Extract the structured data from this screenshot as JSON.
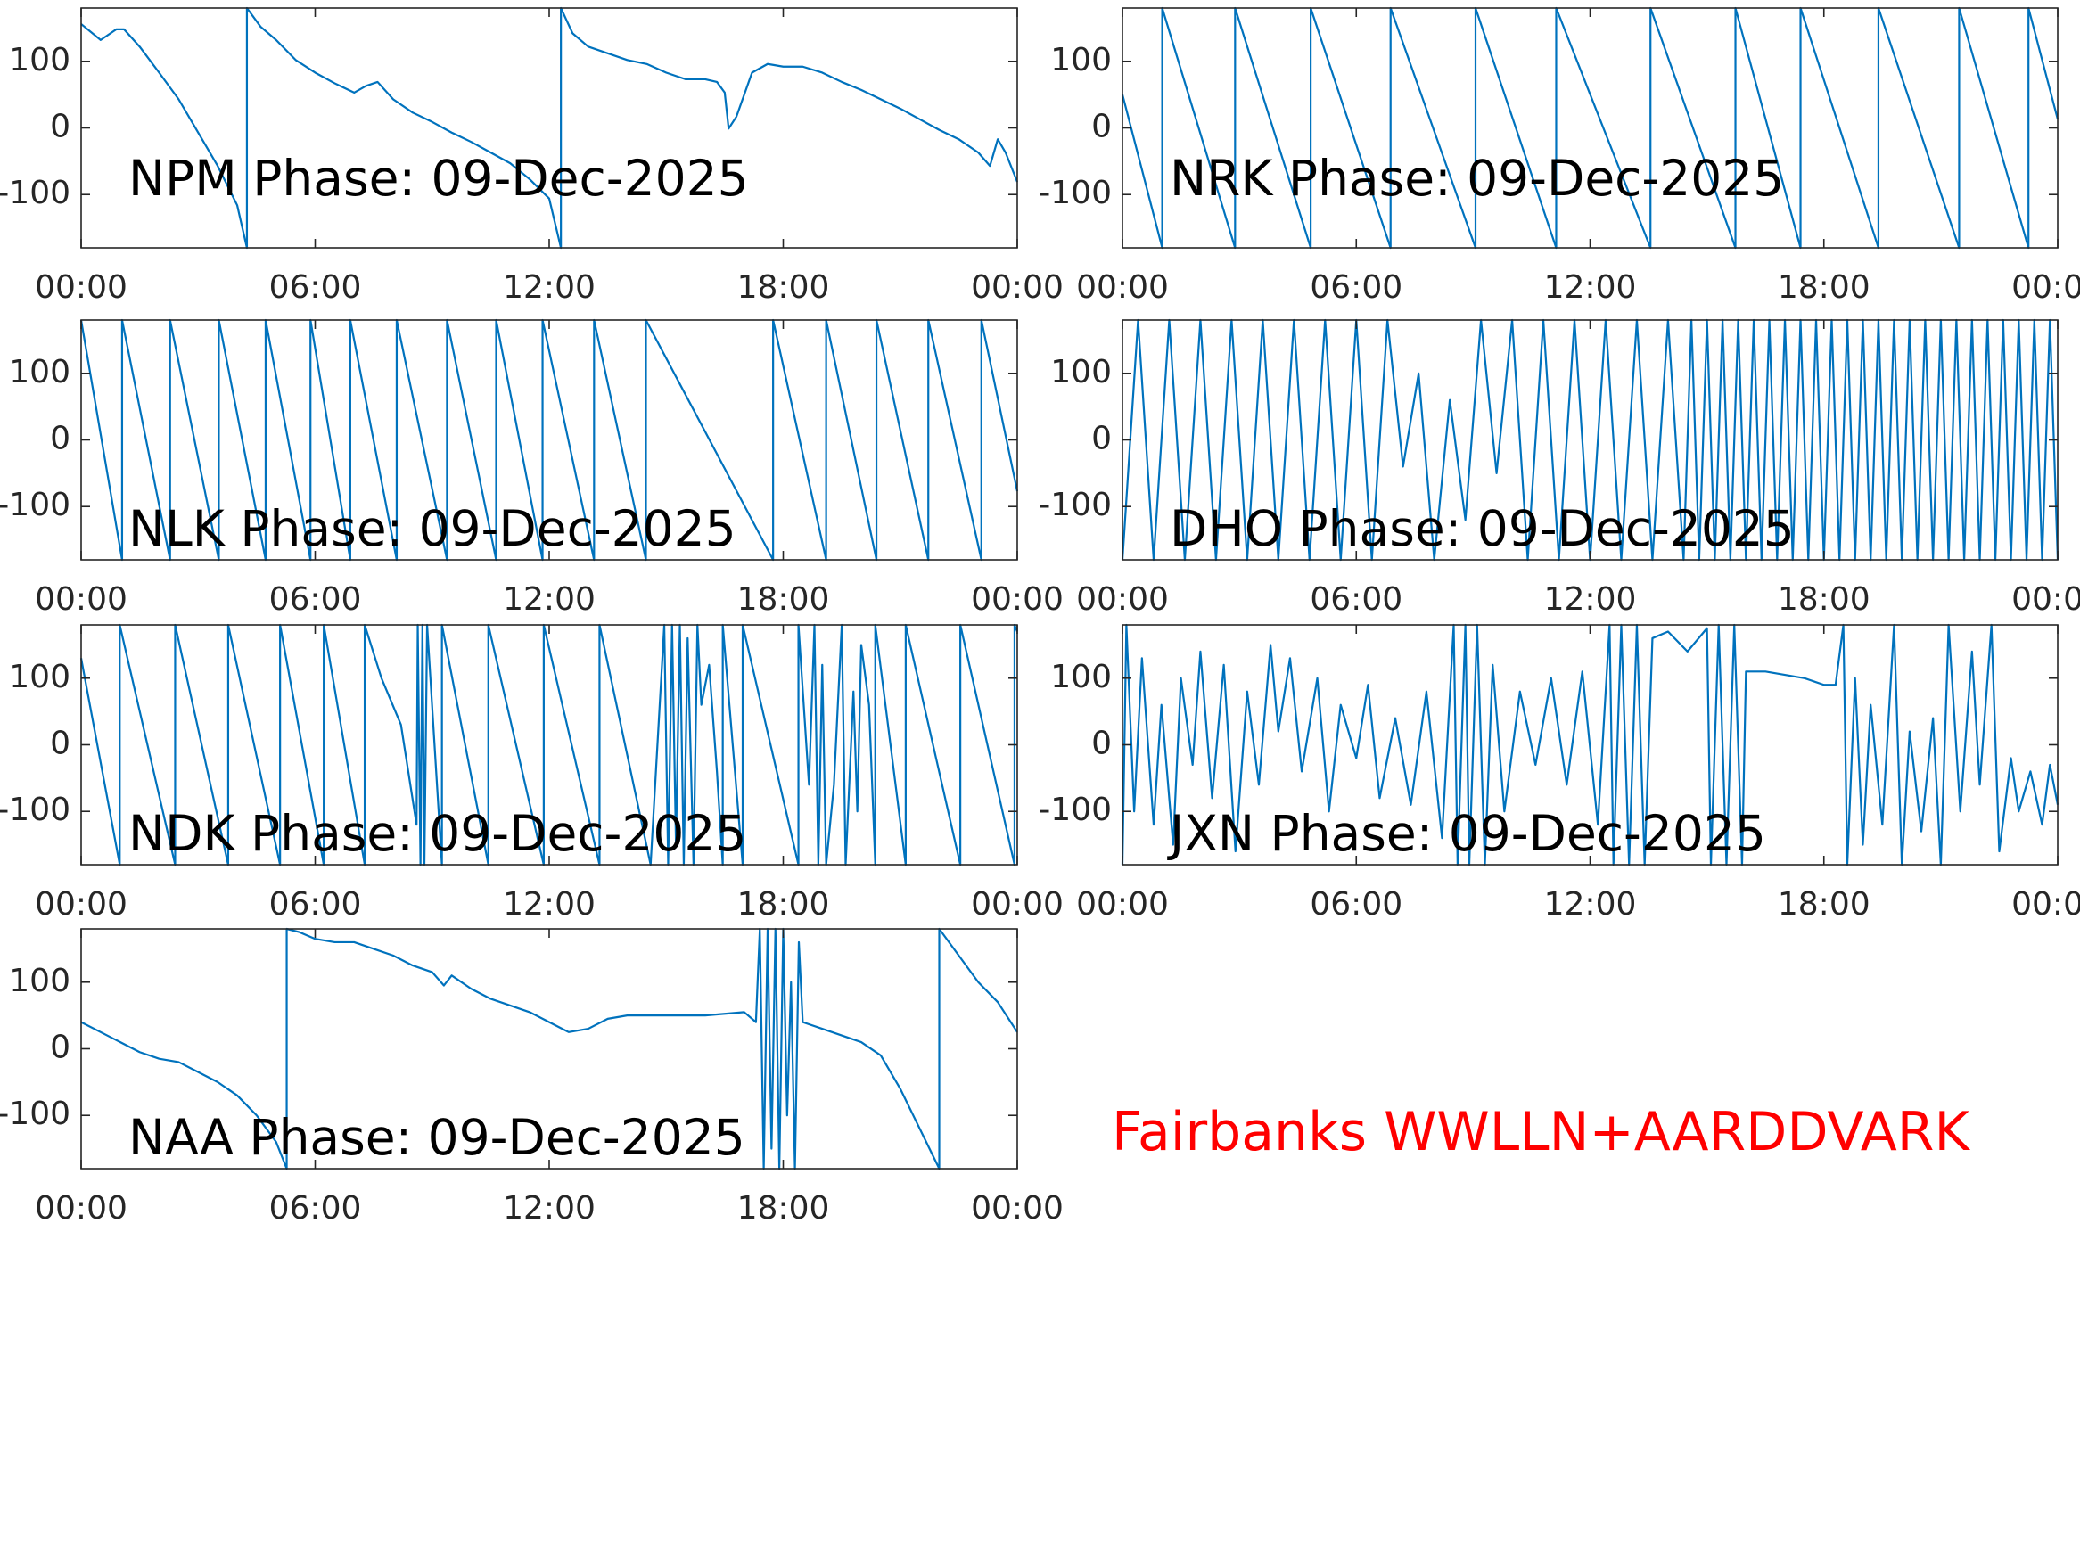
{
  "chart_data": [
    {
      "type": "line",
      "title": "NPM Phase: 09-Dec-2025",
      "color": "#0072bd",
      "x": [
        0,
        0.5,
        0.9,
        1.1,
        1.5,
        2,
        2.5,
        3,
        3.5,
        4,
        4.25,
        4.25,
        4.6,
        5,
        5.5,
        6,
        6.5,
        7,
        7.3,
        7.6,
        8,
        8.5,
        9,
        9.5,
        10,
        10.5,
        11,
        11.5,
        12,
        12.3,
        12.3,
        12.6,
        13,
        13.5,
        14,
        14.5,
        15,
        15.5,
        16,
        16.3,
        16.5,
        16.6,
        16.8,
        17.2,
        17.6,
        18,
        18.5,
        19,
        19.5,
        20,
        20.5,
        21,
        21.5,
        22,
        22.5,
        23,
        23.3,
        23.5,
        23.7,
        24
      ],
      "values": [
        156,
        132,
        148,
        148,
        122,
        83,
        43,
        -7,
        -57,
        -116,
        -180,
        180,
        152,
        132,
        102,
        83,
        67,
        53,
        63,
        69,
        43,
        23,
        9,
        -7,
        -21,
        -37,
        -53,
        -77,
        -106,
        -180,
        180,
        142,
        122,
        112,
        102,
        96,
        83,
        73,
        73,
        69,
        53,
        -1,
        17,
        83,
        96,
        92,
        92,
        83,
        69,
        57,
        43,
        29,
        13,
        -3,
        -17,
        -37,
        -57,
        -17,
        -37,
        -81
      ],
      "xlim": [
        0,
        24
      ],
      "xticks": [
        {
          "value": 0,
          "label": "00:00"
        },
        {
          "value": 6,
          "label": "06:00"
        },
        {
          "value": 12,
          "label": "12:00"
        },
        {
          "value": 18,
          "label": "18:00"
        },
        {
          "value": 24,
          "label": "00:00"
        }
      ],
      "ylim": [
        -180,
        180
      ],
      "yticks": [
        -100,
        0,
        100
      ]
    },
    {
      "type": "line",
      "title": "NRK Phase: 09-Dec-2025",
      "color": "#0072bd",
      "x": [
        0,
        1.02,
        1.02,
        2.89,
        2.89,
        4.83,
        4.83,
        6.88,
        6.88,
        9.06,
        9.06,
        11.13,
        11.13,
        13.55,
        13.55,
        15.73,
        15.73,
        17.4,
        17.4,
        19.4,
        19.4,
        21.47,
        21.47,
        23.25,
        23.25,
        24
      ],
      "values": [
        50,
        -180,
        180,
        -180,
        180,
        -180,
        180,
        -180,
        180,
        -180,
        180,
        -180,
        180,
        -180,
        180,
        -180,
        180,
        -180,
        180,
        -180,
        180,
        -180,
        180,
        -180,
        180,
        13
      ],
      "xlim": [
        0,
        24
      ],
      "xticks": [
        {
          "value": 0,
          "label": "00:00"
        },
        {
          "value": 6,
          "label": "06:00"
        },
        {
          "value": 12,
          "label": "12:00"
        },
        {
          "value": 18,
          "label": "18:00"
        },
        {
          "value": 24,
          "label": "00:00"
        }
      ],
      "ylim": [
        -180,
        180
      ],
      "yticks": [
        -100,
        0,
        100
      ]
    },
    {
      "type": "line",
      "title": "NLK Phase: 09-Dec-2025",
      "color": "#0072bd",
      "x": [
        0,
        1.05,
        1.05,
        2.28,
        2.28,
        3.53,
        3.53,
        4.73,
        4.73,
        5.88,
        5.88,
        6.9,
        6.9,
        8.09,
        8.09,
        9.38,
        9.38,
        10.64,
        10.64,
        11.83,
        11.83,
        13.15,
        13.15,
        14.48,
        14.48,
        17.74,
        17.74,
        19.1,
        19.1,
        20.39,
        20.39,
        21.72,
        21.72,
        23.08,
        23.08,
        24
      ],
      "values": [
        180,
        -180,
        180,
        -180,
        180,
        -180,
        180,
        -180,
        180,
        -180,
        180,
        -180,
        180,
        -180,
        180,
        -180,
        180,
        -180,
        180,
        -180,
        180,
        -180,
        180,
        -180,
        180,
        -180,
        180,
        -180,
        180,
        -180,
        180,
        -180,
        180,
        -180,
        180,
        -77
      ],
      "xlim": [
        0,
        24
      ],
      "xticks": [
        {
          "value": 0,
          "label": "00:00"
        },
        {
          "value": 6,
          "label": "06:00"
        },
        {
          "value": 12,
          "label": "12:00"
        },
        {
          "value": 18,
          "label": "18:00"
        },
        {
          "value": 24,
          "label": "00:00"
        }
      ],
      "ylim": [
        -180,
        180
      ],
      "yticks": [
        -100,
        0,
        100
      ]
    },
    {
      "type": "line",
      "title": "DHO Phase: 09-Dec-2025",
      "color": "#0072bd",
      "x": [
        0,
        0.4,
        0.8,
        1.2,
        1.6,
        2,
        2.4,
        2.8,
        3.2,
        3.6,
        4,
        4.4,
        4.8,
        5.2,
        5.6,
        6,
        6.4,
        6.8,
        7.2,
        7.6,
        8,
        8.4,
        8.8,
        9.2,
        9.6,
        10,
        10.4,
        10.8,
        11.2,
        11.6,
        12,
        12.4,
        12.8,
        13.2,
        13.6,
        14,
        14.4,
        14.6,
        14.8,
        15,
        15.2,
        15.4,
        15.6,
        15.8,
        16,
        16.2,
        16.4,
        16.6,
        16.8,
        17,
        17.2,
        17.4,
        17.6,
        17.8,
        18,
        18.2,
        18.4,
        18.6,
        18.8,
        19,
        19.2,
        19.4,
        19.6,
        19.8,
        20,
        20.2,
        20.4,
        20.6,
        20.8,
        21,
        21.2,
        21.4,
        21.6,
        21.8,
        22,
        22.2,
        22.4,
        22.6,
        22.8,
        23,
        23.2,
        23.4,
        23.6,
        23.8,
        24
      ],
      "values": [
        -180,
        180,
        -180,
        180,
        -180,
        180,
        -180,
        180,
        -180,
        180,
        -180,
        180,
        -180,
        180,
        -180,
        180,
        -180,
        180,
        -40,
        100,
        -180,
        60,
        -120,
        180,
        -50,
        180,
        -180,
        180,
        -180,
        180,
        -180,
        180,
        -180,
        180,
        -180,
        180,
        -180,
        180,
        -180,
        180,
        -180,
        180,
        -180,
        180,
        -180,
        180,
        -180,
        180,
        -180,
        180,
        -180,
        180,
        -180,
        180,
        -180,
        180,
        -180,
        180,
        -180,
        180,
        -180,
        180,
        -180,
        180,
        -180,
        180,
        -180,
        180,
        -180,
        180,
        -180,
        180,
        -180,
        180,
        -180,
        180,
        -180,
        180,
        -180,
        180,
        -180,
        180,
        -180,
        180,
        -180
      ],
      "xlim": [
        0,
        24
      ],
      "xticks": [
        {
          "value": 0,
          "label": "00:00"
        },
        {
          "value": 6,
          "label": "06:00"
        },
        {
          "value": 12,
          "label": "12:00"
        },
        {
          "value": 18,
          "label": "18:00"
        },
        {
          "value": 24,
          "label": "00:00"
        }
      ],
      "ylim": [
        -180,
        180
      ],
      "yticks": [
        -100,
        0,
        100
      ]
    },
    {
      "type": "line",
      "title": "NDK Phase: 09-Dec-2025",
      "color": "#0072bd",
      "x": [
        0,
        0.99,
        0.99,
        2.41,
        2.41,
        3.77,
        3.77,
        5.1,
        5.1,
        6.22,
        6.22,
        7.27,
        7.27,
        7.7,
        8.2,
        8.6,
        8.63,
        8.7,
        8.75,
        8.8,
        8.87,
        9.25,
        9.25,
        10.44,
        10.44,
        11.86,
        11.86,
        13.29,
        13.29,
        14.6,
        14.95,
        15.05,
        15.15,
        15.25,
        15.35,
        15.45,
        15.55,
        15.7,
        15.8,
        15.9,
        16.1,
        16.3,
        16.45,
        16.45,
        16.96,
        16.96,
        18.39,
        18.39,
        18.66,
        18.8,
        18.9,
        19,
        19.1,
        19.3,
        19.5,
        19.6,
        19.8,
        19.9,
        20,
        20.2,
        20.36,
        20.36,
        21.14,
        21.14,
        22.54,
        22.54,
        23.93,
        23.93,
        24
      ],
      "values": [
        130,
        -180,
        180,
        -180,
        180,
        -180,
        180,
        -180,
        180,
        -180,
        180,
        -180,
        180,
        100,
        30,
        -120,
        180,
        -180,
        180,
        -180,
        180,
        -180,
        180,
        -180,
        180,
        -180,
        180,
        -180,
        180,
        -180,
        180,
        -180,
        180,
        -150,
        180,
        -180,
        160,
        -180,
        180,
        60,
        120,
        -40,
        -180,
        180,
        -180,
        180,
        -180,
        180,
        -60,
        180,
        -180,
        120,
        -180,
        -60,
        180,
        -180,
        80,
        -100,
        150,
        60,
        -180,
        180,
        -180,
        180,
        -180,
        180,
        -180,
        180,
        170
      ],
      "xlim": [
        0,
        24
      ],
      "xticks": [
        {
          "value": 0,
          "label": "00:00"
        },
        {
          "value": 6,
          "label": "06:00"
        },
        {
          "value": 12,
          "label": "12:00"
        },
        {
          "value": 18,
          "label": "18:00"
        },
        {
          "value": 24,
          "label": "00:00"
        }
      ],
      "ylim": [
        -180,
        180
      ],
      "yticks": [
        -100,
        0,
        100
      ]
    },
    {
      "type": "line",
      "title": "JXN Phase: 09-Dec-2025",
      "color": "#0072bd",
      "x": [
        0,
        0.1,
        0.3,
        0.5,
        0.8,
        1,
        1.3,
        1.5,
        1.8,
        2,
        2.3,
        2.6,
        2.9,
        3.2,
        3.5,
        3.8,
        4,
        4.3,
        4.6,
        5,
        5.3,
        5.6,
        6,
        6.3,
        6.6,
        7,
        7.4,
        7.8,
        8.2,
        8.5,
        8.6,
        8.8,
        8.9,
        9.1,
        9.3,
        9.5,
        9.8,
        10.2,
        10.6,
        11,
        11.4,
        11.8,
        12.2,
        12.5,
        12.6,
        12.8,
        13,
        13.2,
        13.4,
        13.6,
        14,
        14.5,
        15,
        15.1,
        15.3,
        15.5,
        15.7,
        15.9,
        16,
        16.5,
        17,
        17.5,
        18,
        18.3,
        18.5,
        18.6,
        18.8,
        19,
        19.2,
        19.5,
        19.8,
        20,
        20.2,
        20.5,
        20.8,
        21,
        21.2,
        21.5,
        21.8,
        22,
        22.3,
        22.5,
        22.8,
        23,
        23.3,
        23.6,
        23.8,
        24
      ],
      "values": [
        -180,
        180,
        -100,
        130,
        -120,
        60,
        -150,
        100,
        -30,
        140,
        -80,
        120,
        -160,
        80,
        -60,
        150,
        20,
        130,
        -40,
        100,
        -100,
        60,
        -20,
        90,
        -80,
        40,
        -90,
        80,
        -140,
        180,
        -180,
        180,
        -180,
        180,
        -180,
        120,
        -100,
        80,
        -30,
        100,
        -60,
        110,
        -120,
        180,
        -180,
        180,
        -180,
        180,
        -180,
        160,
        170,
        140,
        175,
        -180,
        180,
        -180,
        180,
        -180,
        110,
        110,
        105,
        100,
        90,
        90,
        180,
        -180,
        100,
        -150,
        60,
        -120,
        180,
        -180,
        20,
        -130,
        40,
        -180,
        180,
        -100,
        140,
        -60,
        180,
        -160,
        -20,
        -100,
        -40,
        -120,
        -30,
        -90
      ],
      "xlim": [
        0,
        24
      ],
      "xticks": [
        {
          "value": 0,
          "label": "00:00"
        },
        {
          "value": 6,
          "label": "06:00"
        },
        {
          "value": 12,
          "label": "12:00"
        },
        {
          "value": 18,
          "label": "18:00"
        },
        {
          "value": 24,
          "label": "00:00"
        }
      ],
      "ylim": [
        -180,
        180
      ],
      "yticks": [
        -100,
        0,
        100
      ]
    },
    {
      "type": "line",
      "title": "NAA Phase: 09-Dec-2025",
      "color": "#0072bd",
      "x": [
        0,
        0.5,
        1,
        1.5,
        2,
        2.5,
        3,
        3.5,
        4,
        4.5,
        5,
        5.27,
        5.27,
        5.6,
        6,
        6.5,
        7,
        7.5,
        8,
        8.5,
        9,
        9.3,
        9.5,
        10,
        10.5,
        11,
        11.5,
        12,
        12.5,
        13,
        13.5,
        14,
        15,
        16,
        17,
        17.3,
        17.4,
        17.5,
        17.6,
        17.7,
        17.8,
        17.9,
        18,
        18.1,
        18.2,
        18.3,
        18.4,
        18.5,
        19,
        19.5,
        20,
        20.5,
        21,
        21.5,
        22,
        22,
        22.5,
        23,
        23.5,
        24
      ],
      "values": [
        40,
        25,
        10,
        -5,
        -15,
        -20,
        -35,
        -50,
        -70,
        -100,
        -140,
        -180,
        180,
        175,
        165,
        160,
        160,
        150,
        140,
        125,
        115,
        95,
        110,
        90,
        75,
        65,
        55,
        40,
        25,
        30,
        45,
        50,
        50,
        50,
        55,
        40,
        180,
        -180,
        180,
        -150,
        180,
        -180,
        180,
        -100,
        100,
        -180,
        160,
        40,
        30,
        20,
        10,
        -10,
        -60,
        -120,
        -180,
        180,
        140,
        100,
        70,
        25
      ],
      "xlim": [
        0,
        24
      ],
      "xticks": [
        {
          "value": 0,
          "label": "00:00"
        },
        {
          "value": 6,
          "label": "06:00"
        },
        {
          "value": 12,
          "label": "12:00"
        },
        {
          "value": 18,
          "label": "18:00"
        },
        {
          "value": 24,
          "label": "00:00"
        }
      ],
      "ylim": [
        -180,
        180
      ],
      "yticks": [
        -100,
        0,
        100
      ]
    }
  ],
  "annotation": {
    "text": "Fairbanks WWLLN+AARDDVARK",
    "color": "#ff0000"
  }
}
